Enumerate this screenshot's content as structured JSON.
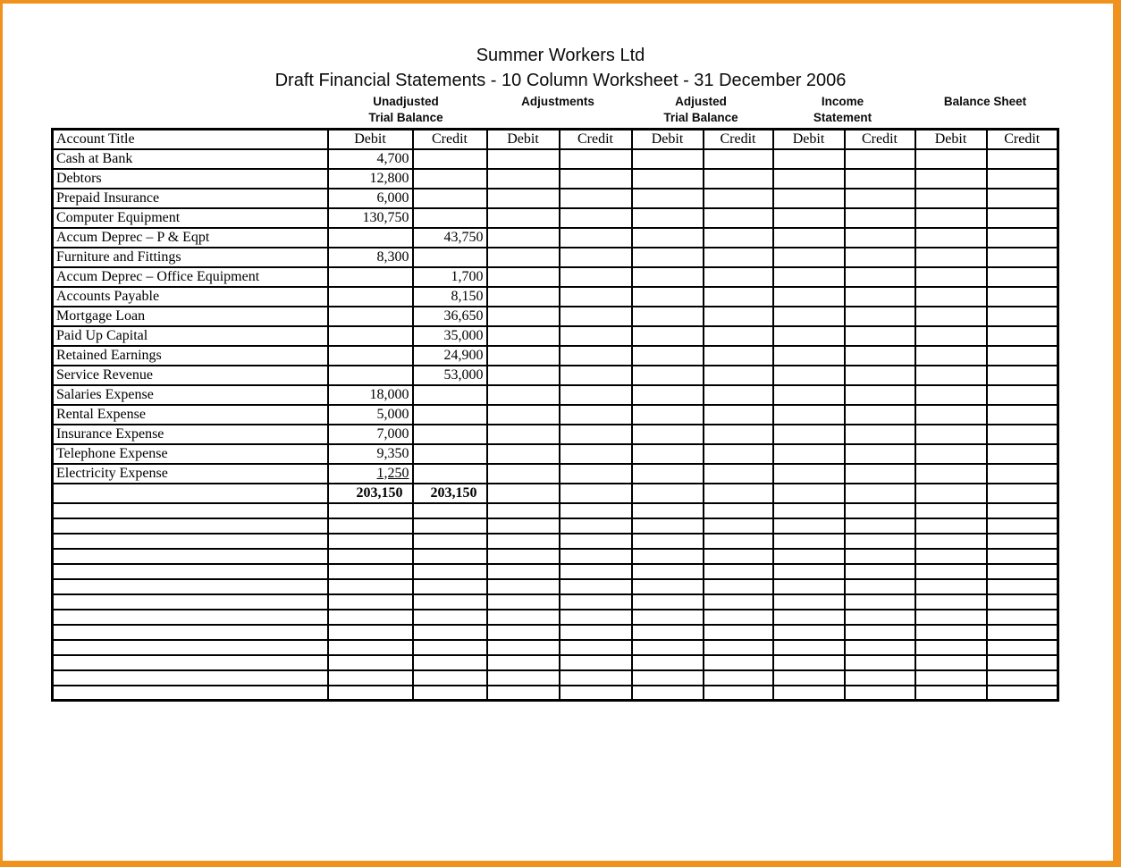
{
  "frame": {
    "border_color": "#F0921E"
  },
  "header": {
    "title": "Summer Workers Ltd",
    "subtitle": "Draft Financial Statements - 10 Column Worksheet - 31 December 2006"
  },
  "column_groups": [
    {
      "line1": "Unadjusted",
      "line2": "Trial Balance"
    },
    {
      "line1": "Adjustments",
      "line2": ""
    },
    {
      "line1": "Adjusted",
      "line2": "Trial Balance"
    },
    {
      "line1": "Income",
      "line2": "Statement"
    },
    {
      "line1": "Balance Sheet",
      "line2": ""
    }
  ],
  "worksheet": {
    "account_title_header": "Account Title",
    "money_column_headers": [
      "Debit",
      "Credit",
      "Debit",
      "Credit",
      "Debit",
      "Credit",
      "Debit",
      "Credit",
      "Debit",
      "Credit"
    ],
    "rows": [
      {
        "account": "Cash at Bank",
        "cells": [
          "4,700",
          "",
          "",
          "",
          "",
          "",
          "",
          "",
          "",
          ""
        ]
      },
      {
        "account": "Debtors",
        "cells": [
          "12,800",
          "",
          "",
          "",
          "",
          "",
          "",
          "",
          "",
          ""
        ]
      },
      {
        "account": "Prepaid Insurance",
        "cells": [
          "6,000",
          "",
          "",
          "",
          "",
          "",
          "",
          "",
          "",
          ""
        ]
      },
      {
        "account": "Computer Equipment",
        "cells": [
          "130,750",
          "",
          "",
          "",
          "",
          "",
          "",
          "",
          "",
          ""
        ]
      },
      {
        "account": "Accum Deprec – P & Eqpt",
        "cells": [
          "",
          "43,750",
          "",
          "",
          "",
          "",
          "",
          "",
          "",
          ""
        ]
      },
      {
        "account": "Furniture and Fittings",
        "cells": [
          "8,300",
          "",
          "",
          "",
          "",
          "",
          "",
          "",
          "",
          ""
        ]
      },
      {
        "account": "Accum Deprec – Office Equipment",
        "cells": [
          "",
          "1,700",
          "",
          "",
          "",
          "",
          "",
          "",
          "",
          ""
        ]
      },
      {
        "account": "Accounts Payable",
        "cells": [
          "",
          "8,150",
          "",
          "",
          "",
          "",
          "",
          "",
          "",
          ""
        ]
      },
      {
        "account": "Mortgage Loan",
        "cells": [
          "",
          "36,650",
          "",
          "",
          "",
          "",
          "",
          "",
          "",
          ""
        ]
      },
      {
        "account": "Paid Up Capital",
        "cells": [
          "",
          "35,000",
          "",
          "",
          "",
          "",
          "",
          "",
          "",
          ""
        ]
      },
      {
        "account": "Retained Earnings",
        "cells": [
          "",
          "24,900",
          "",
          "",
          "",
          "",
          "",
          "",
          "",
          ""
        ]
      },
      {
        "account": "Service Revenue",
        "cells": [
          "",
          "53,000",
          "",
          "",
          "",
          "",
          "",
          "",
          "",
          ""
        ]
      },
      {
        "account": "Salaries Expense",
        "cells": [
          "18,000",
          "",
          "",
          "",
          "",
          "",
          "",
          "",
          "",
          ""
        ]
      },
      {
        "account": "Rental Expense",
        "cells": [
          "5,000",
          "",
          "",
          "",
          "",
          "",
          "",
          "",
          "",
          ""
        ]
      },
      {
        "account": "Insurance Expense",
        "cells": [
          "7,000",
          "",
          "",
          "",
          "",
          "",
          "",
          "",
          "",
          ""
        ]
      },
      {
        "account": "Telephone Expense",
        "cells": [
          "9,350",
          "",
          "",
          "",
          "",
          "",
          "",
          "",
          "",
          ""
        ]
      },
      {
        "account": "Electricity Expense",
        "cells": [
          "1,250",
          "",
          "",
          "",
          "",
          "",
          "",
          "",
          "",
          ""
        ],
        "underline_cells": [
          0
        ]
      }
    ],
    "totals_row": {
      "account": "",
      "cells": [
        "203,150",
        "203,150",
        "",
        "",
        "",
        "",
        "",
        "",
        "",
        ""
      ]
    },
    "empty_row_count": 13
  }
}
